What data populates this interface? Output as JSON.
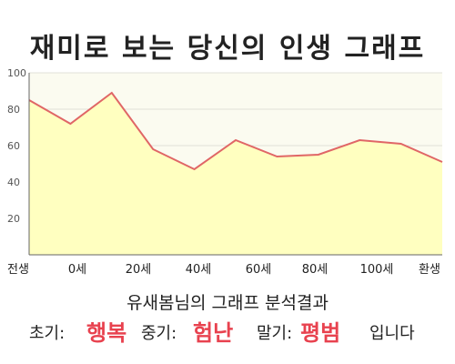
{
  "title": "재미로 보는 당신의 인생 그래프",
  "subtitle": "유새봄님의 그래프 분석결과",
  "result": {
    "early_label": "초기:",
    "early_value": "행복",
    "middle_label": "중기:",
    "middle_value": "험난",
    "late_label": "말기:",
    "late_value": "평범",
    "suffix": "입니다"
  },
  "colors": {
    "line": "#e06666",
    "fill": "#ffffc0",
    "accent": "#e8424f"
  },
  "chart_data": {
    "type": "area",
    "title": "재미로 보는 당신의 인생 그래프",
    "xlabel": "",
    "ylabel": "",
    "ylim": [
      0,
      100
    ],
    "yticks": [
      20,
      40,
      60,
      80,
      100
    ],
    "x_tick_labels": [
      "전생",
      "0세",
      "20세",
      "40세",
      "60세",
      "80세",
      "100세",
      "환생"
    ],
    "grid": true,
    "series": [
      {
        "values": [
          85,
          72,
          89,
          58,
          47,
          63,
          54,
          55,
          63,
          61,
          51
        ]
      }
    ]
  }
}
